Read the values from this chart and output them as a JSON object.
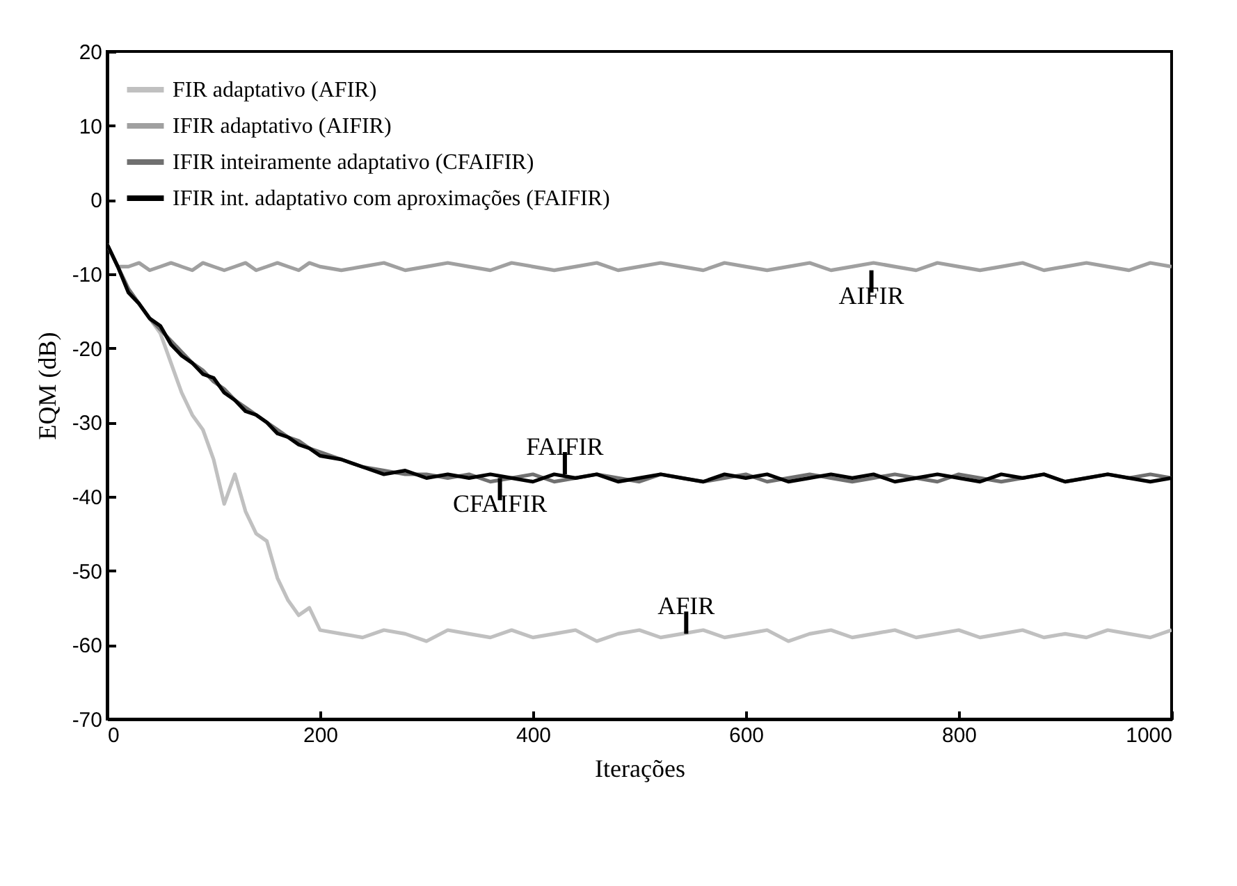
{
  "chart_data": {
    "type": "line",
    "xlabel": "Iterações",
    "ylabel": "EQM (dB)",
    "xlim": [
      0,
      1000
    ],
    "xticks": [
      0,
      200,
      400,
      600,
      800,
      1000
    ],
    "ylim": [
      -70,
      20
    ],
    "yticks": [
      -70,
      -60,
      -50,
      -40,
      -30,
      -20,
      -10,
      0,
      10,
      20
    ],
    "grid": false,
    "legend": "top left",
    "marker": "none",
    "line_style": "solid",
    "x": [
      0,
      10,
      20,
      30,
      40,
      50,
      60,
      70,
      80,
      90,
      100,
      110,
      120,
      130,
      140,
      150,
      160,
      170,
      180,
      190,
      200,
      220,
      240,
      260,
      280,
      300,
      320,
      340,
      360,
      380,
      400,
      420,
      440,
      460,
      480,
      500,
      520,
      540,
      560,
      580,
      600,
      620,
      640,
      660,
      680,
      700,
      720,
      740,
      760,
      780,
      800,
      820,
      840,
      860,
      880,
      900,
      920,
      940,
      960,
      980,
      1000
    ],
    "series": [
      {
        "name": "FIR adaptativo (AFIR)",
        "color": "#c0c0c0",
        "values": [
          -6,
          -9,
          -12,
          -14,
          -16,
          -18,
          -22,
          -26,
          -29,
          -31,
          -35,
          -41,
          -37,
          -42,
          -45,
          -46,
          -51,
          -54,
          -56,
          -55,
          -58,
          -58.5,
          -59,
          -58,
          -58.5,
          -59.5,
          -58,
          -58.5,
          -59,
          -58,
          -59,
          -58.5,
          -58,
          -59.5,
          -58.5,
          -58,
          -59,
          -58.5,
          -58,
          -59,
          -58.5,
          -58,
          -59.5,
          -58.5,
          -58,
          -59,
          -58.5,
          -58,
          -59,
          -58.5,
          -58,
          -59,
          -58.5,
          -58,
          -59,
          -58.5,
          -59,
          -58,
          -58.5,
          -59,
          -58
        ]
      },
      {
        "name": "IFIR adaptativo (AIFIR)",
        "color": "#a0a0a0",
        "values": [
          -6,
          -9,
          -9,
          -8.5,
          -9.5,
          -9,
          -8.5,
          -9,
          -9.5,
          -8.5,
          -9,
          -9.5,
          -9,
          -8.5,
          -9.5,
          -9,
          -8.5,
          -9,
          -9.5,
          -8.5,
          -9,
          -9.5,
          -9,
          -8.5,
          -9.5,
          -9,
          -8.5,
          -9,
          -9.5,
          -8.5,
          -9,
          -9.5,
          -9,
          -8.5,
          -9.5,
          -9,
          -8.5,
          -9,
          -9.5,
          -8.5,
          -9,
          -9.5,
          -9,
          -8.5,
          -9.5,
          -9,
          -8.5,
          -9,
          -9.5,
          -8.5,
          -9,
          -9.5,
          -9,
          -8.5,
          -9.5,
          -9,
          -8.5,
          -9,
          -9.5,
          -8.5,
          -9
        ]
      },
      {
        "name": "IFIR inteiramente adaptativo (CFAIFIR)",
        "color": "#707070",
        "values": [
          -6,
          -9,
          -12,
          -14,
          -16,
          -17.5,
          -19,
          -20.5,
          -22,
          -23,
          -24.5,
          -25.5,
          -27,
          -28,
          -29,
          -30,
          -31,
          -32,
          -32.5,
          -33.5,
          -34,
          -35,
          -36,
          -36.5,
          -37,
          -37,
          -37.5,
          -37,
          -38,
          -37.5,
          -37,
          -38,
          -37.5,
          -37,
          -37.5,
          -38,
          -37,
          -37.5,
          -38,
          -37.5,
          -37,
          -38,
          -37.5,
          -37,
          -37.5,
          -38,
          -37.5,
          -37,
          -37.5,
          -38,
          -37,
          -37.5,
          -38,
          -37.5,
          -37,
          -38,
          -37.5,
          -37,
          -37.5,
          -37,
          -37.5
        ]
      },
      {
        "name": "IFIR int. adaptativo com aproximações (FAIFIR)",
        "color": "#000000",
        "values": [
          -6,
          -9,
          -12.5,
          -14,
          -16,
          -17,
          -19.5,
          -21,
          -22,
          -23.5,
          -24,
          -26,
          -27,
          -28.5,
          -29,
          -30,
          -31.5,
          -32,
          -33,
          -33.5,
          -34.5,
          -35,
          -36,
          -37,
          -36.5,
          -37.5,
          -37,
          -37.5,
          -37,
          -37.5,
          -38,
          -37,
          -37.5,
          -37,
          -38,
          -37.5,
          -37,
          -37.5,
          -38,
          -37,
          -37.5,
          -37,
          -38,
          -37.5,
          -37,
          -37.5,
          -37,
          -38,
          -37.5,
          -37,
          -37.5,
          -38,
          -37,
          -37.5,
          -37,
          -38,
          -37.5,
          -37,
          -37.5,
          -38,
          -37.5
        ]
      }
    ],
    "annotations": [
      {
        "text": "AIFIR",
        "x": 718,
        "y": -9.5
      },
      {
        "text": "FAIFIR",
        "x": 430,
        "y": -37
      },
      {
        "text": "CFAIFIR",
        "x": 369,
        "y": -37.5
      },
      {
        "text": "AFIR",
        "x": 544,
        "y": -58.5
      }
    ]
  }
}
